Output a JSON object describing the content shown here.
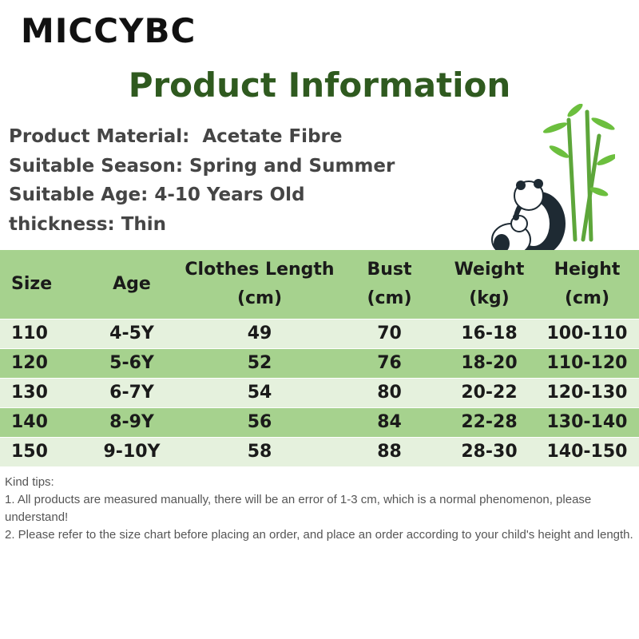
{
  "brand": "MICCYBC",
  "title": "Product Information",
  "attributes": [
    "Product Material:  Acetate Fibre",
    "Suitable Season: Spring and Summer",
    "Suitable Age: 4-10 Years Old",
    "thickness: Thin"
  ],
  "table": {
    "header": [
      [
        "Size"
      ],
      [
        "Age"
      ],
      [
        "Clothes Length",
        "(cm)"
      ],
      [
        "Bust",
        "(cm)"
      ],
      [
        "Weight",
        "(kg)"
      ],
      [
        "Height",
        "(cm)"
      ]
    ],
    "rows": [
      [
        "110",
        "4-5Y",
        "49",
        "70",
        "16-18",
        "100-110"
      ],
      [
        "120",
        "5-6Y",
        "52",
        "76",
        "18-20",
        "110-120"
      ],
      [
        "130",
        "6-7Y",
        "54",
        "80",
        "20-22",
        "120-130"
      ],
      [
        "140",
        "8-9Y",
        "56",
        "84",
        "22-28",
        "130-140"
      ],
      [
        "150",
        "9-10Y",
        "58",
        "88",
        "28-30",
        "140-150"
      ]
    ]
  },
  "tips": [
    "Kind tips:",
    "1. All products are measured manually, there will be an error of 1-3 cm, which is a normal phenomenon, please understand!",
    "2. Please refer to the size chart before placing an order, and place an order according to your child's height and length."
  ]
}
